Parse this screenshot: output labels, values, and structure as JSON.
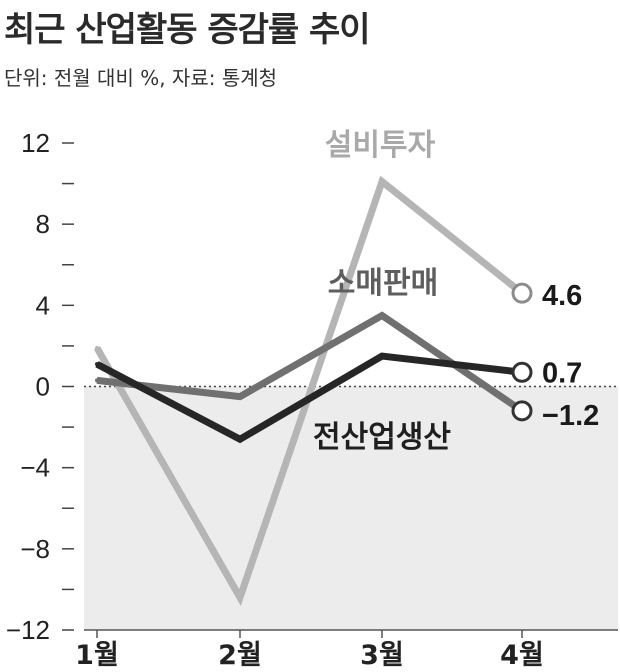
{
  "title": "최근 산업활동 증감률 추이",
  "subtitle": "단위: 전월 대비 %, 자료: 통계청",
  "chart_data": {
    "type": "line",
    "title": "최근 산업활동 증감률 추이",
    "subtitle": "단위: 전월 대비 %, 자료: 통계청",
    "categories": [
      "1월",
      "2월",
      "3월",
      "4월"
    ],
    "ylim": [
      -12,
      12
    ],
    "yticks": [
      12,
      8,
      4,
      0,
      -4,
      -8,
      -12
    ],
    "ytick_labels": [
      "12",
      "8",
      "4",
      "0",
      "−4",
      "−8",
      "−12"
    ],
    "grid": false,
    "shaded_region": "below zero",
    "series": [
      {
        "name": "설비투자",
        "values": [
          1.9,
          -10.4,
          10.1,
          4.6
        ],
        "end_label": "4.6",
        "color": "#b5b5b5"
      },
      {
        "name": "소매판매",
        "values": [
          0.3,
          -0.5,
          3.5,
          -1.2
        ],
        "end_label": "−1.2",
        "color": "#707070"
      },
      {
        "name": "전산업생산",
        "values": [
          1.1,
          -2.6,
          1.5,
          0.7
        ],
        "end_label": "0.7",
        "color": "#262626"
      }
    ]
  }
}
